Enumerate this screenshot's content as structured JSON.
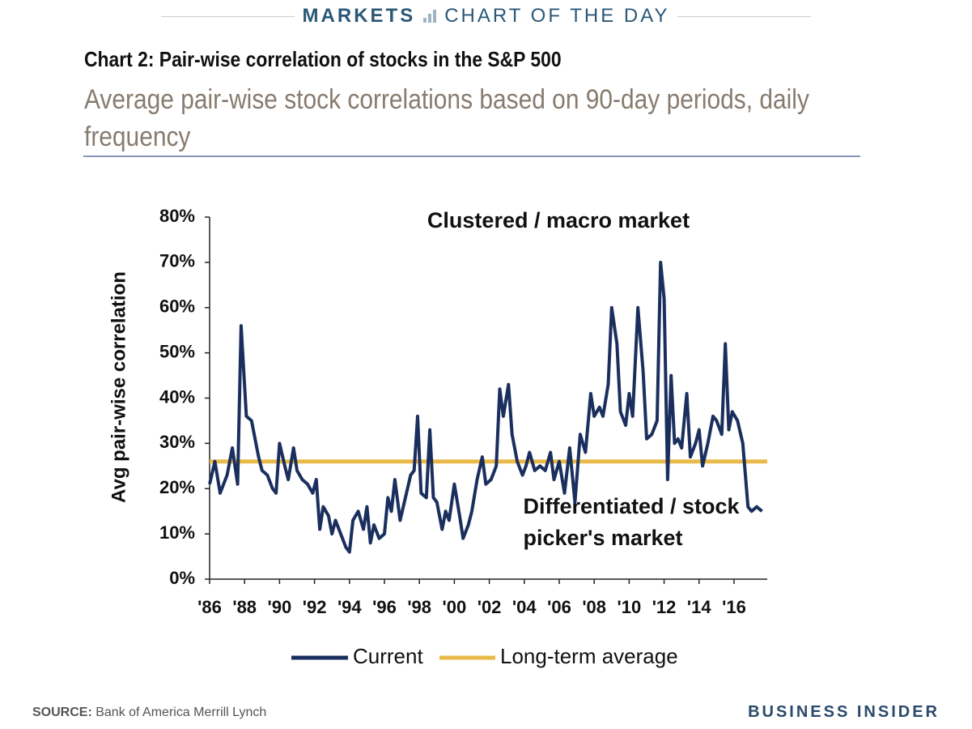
{
  "header": {
    "section": "MARKETS",
    "feature": "CHART OF THE DAY"
  },
  "chart_data": {
    "type": "line",
    "title": "Chart 2: Pair-wise correlation of stocks in the S&P 500",
    "subtitle": "Average pair-wise stock correlations based on 90-day periods, daily frequency",
    "y_label": "Avg pair-wise correlation",
    "annotations": [
      "Clustered / macro market",
      "Differentiated / stock",
      "picker's market"
    ],
    "x": [
      1986.0,
      1986.3,
      1986.6,
      1987.0,
      1987.3,
      1987.6,
      1987.8,
      1988.1,
      1988.4,
      1988.8,
      1989.0,
      1989.3,
      1989.6,
      1989.8,
      1990.0,
      1990.3,
      1990.5,
      1990.8,
      1991.0,
      1991.3,
      1991.6,
      1991.9,
      1992.1,
      1992.3,
      1992.5,
      1992.8,
      1993.0,
      1993.2,
      1993.5,
      1993.8,
      1994.0,
      1994.2,
      1994.5,
      1994.8,
      1995.0,
      1995.2,
      1995.4,
      1995.7,
      1996.0,
      1996.2,
      1996.4,
      1996.6,
      1996.9,
      1997.2,
      1997.5,
      1997.7,
      1997.9,
      1998.1,
      1998.4,
      1998.6,
      1998.8,
      1999.0,
      1999.3,
      1999.5,
      1999.7,
      2000.0,
      2000.3,
      2000.5,
      2000.8,
      2001.0,
      2001.3,
      2001.6,
      2001.8,
      2002.1,
      2002.4,
      2002.6,
      2002.8,
      2003.1,
      2003.3,
      2003.6,
      2003.9,
      2004.1,
      2004.3,
      2004.6,
      2004.9,
      2005.2,
      2005.5,
      2005.7,
      2006.0,
      2006.3,
      2006.6,
      2006.9,
      2007.2,
      2007.5,
      2007.8,
      2008.0,
      2008.3,
      2008.5,
      2008.8,
      2009.0,
      2009.3,
      2009.5,
      2009.8,
      2010.0,
      2010.2,
      2010.5,
      2010.8,
      2011.0,
      2011.3,
      2011.6,
      2011.8,
      2012.0,
      2012.2,
      2012.4,
      2012.6,
      2012.8,
      2013.0,
      2013.3,
      2013.5,
      2013.8,
      2014.0,
      2014.2,
      2014.5,
      2014.8,
      2015.0,
      2015.3,
      2015.5,
      2015.7,
      2015.9,
      2016.2,
      2016.5,
      2016.8,
      2017.0,
      2017.3,
      2017.6
    ],
    "series": [
      {
        "name": "Current",
        "color": "#1b2f5e",
        "values": [
          21,
          26,
          19,
          23,
          29,
          21,
          56,
          36,
          35,
          27,
          24,
          23,
          20,
          19,
          30,
          25,
          22,
          29,
          24,
          22,
          21,
          19,
          22,
          11,
          16,
          14,
          10,
          13,
          10,
          7,
          6,
          13,
          15,
          11,
          16,
          8,
          12,
          9,
          10,
          18,
          15,
          22,
          13,
          18,
          23,
          24,
          36,
          19,
          18,
          33,
          18,
          17,
          11,
          15,
          13,
          21,
          14,
          9,
          12,
          15,
          22,
          27,
          21,
          22,
          25,
          42,
          36,
          43,
          32,
          26,
          23,
          25,
          28,
          24,
          25,
          24,
          28,
          22,
          26,
          19,
          29,
          17,
          32,
          28,
          41,
          36,
          38,
          36,
          43,
          60,
          52,
          37,
          34,
          41,
          36,
          60,
          46,
          31,
          32,
          35,
          70,
          62,
          22,
          45,
          30,
          31,
          29,
          41,
          27,
          30,
          33,
          25,
          30,
          36,
          35,
          32,
          52,
          33,
          37,
          35,
          30,
          16,
          15,
          16,
          15
        ]
      }
    ],
    "reference_line": {
      "name": "Long-term average",
      "color": "#e9b949",
      "value": 26
    },
    "xlim": [
      1986,
      2017.9
    ],
    "ylim": [
      0,
      80
    ],
    "xticks": [
      {
        "value": 1986,
        "label": "'86"
      },
      {
        "value": 1988,
        "label": "'88"
      },
      {
        "value": 1990,
        "label": "'90"
      },
      {
        "value": 1992,
        "label": "'92"
      },
      {
        "value": 1994,
        "label": "'94"
      },
      {
        "value": 1996,
        "label": "'96"
      },
      {
        "value": 1998,
        "label": "'98"
      },
      {
        "value": 2000,
        "label": "'00"
      },
      {
        "value": 2002,
        "label": "'02"
      },
      {
        "value": 2004,
        "label": "'04"
      },
      {
        "value": 2006,
        "label": "'06"
      },
      {
        "value": 2008,
        "label": "'08"
      },
      {
        "value": 2010,
        "label": "'10"
      },
      {
        "value": 2012,
        "label": "'12"
      },
      {
        "value": 2014,
        "label": "'14"
      },
      {
        "value": 2016,
        "label": "'16"
      }
    ],
    "yticks": [
      {
        "value": 0,
        "label": "0%"
      },
      {
        "value": 10,
        "label": "10%"
      },
      {
        "value": 20,
        "label": "20%"
      },
      {
        "value": 30,
        "label": "30%"
      },
      {
        "value": 40,
        "label": "40%"
      },
      {
        "value": 50,
        "label": "50%"
      },
      {
        "value": 60,
        "label": "60%"
      },
      {
        "value": 70,
        "label": "70%"
      },
      {
        "value": 80,
        "label": "80%"
      }
    ],
    "grid": false
  },
  "footer": {
    "source_label": "SOURCE:",
    "source": "Bank of America Merrill Lynch",
    "brand": "BUSINESS INSIDER"
  }
}
